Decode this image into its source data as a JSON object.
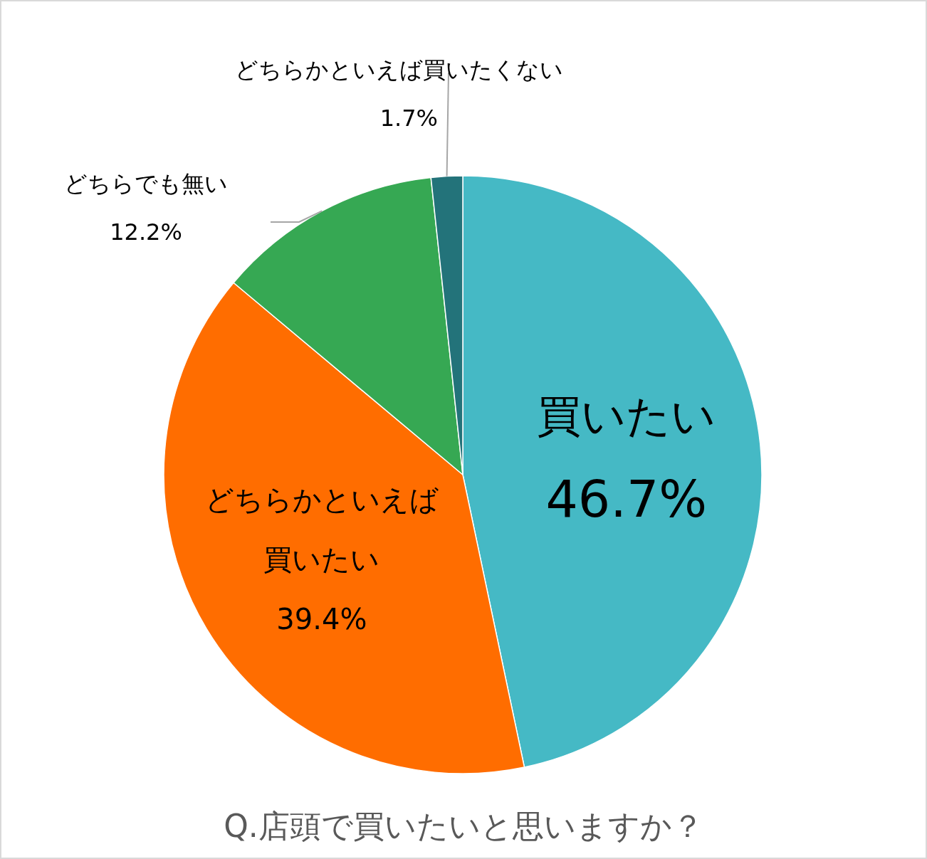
{
  "chart_data": {
    "type": "pie",
    "title": "Q.店頭で買いたいと思いますか？",
    "categories": [
      "買いたい",
      "どちらかといえば買いたい",
      "どちらでも無い",
      "どちらかといえば買いたくない"
    ],
    "values": [
      46.7,
      39.4,
      12.2,
      1.7
    ],
    "value_labels": [
      "46.7%",
      "39.4%",
      "12.2%",
      "1.7%"
    ],
    "colors": [
      "#45b9c5",
      "#ff6d00",
      "#36a853",
      "#23737a"
    ]
  }
}
